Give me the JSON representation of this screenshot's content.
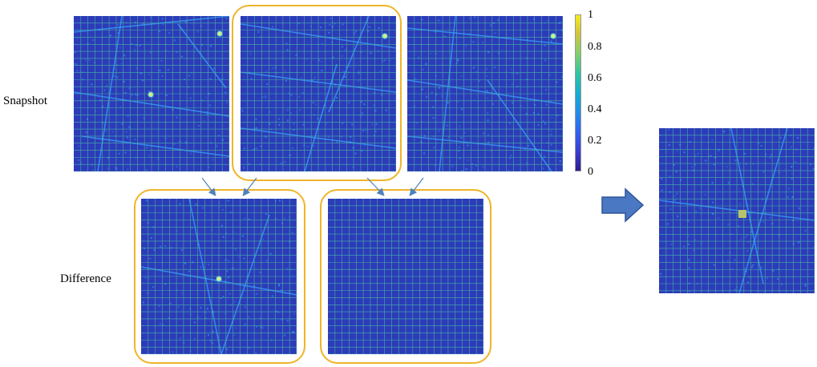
{
  "labels": {
    "snapshot": "Snapshot",
    "difference": "Difference"
  },
  "colorbar": {
    "ticks": [
      "1",
      "0.8",
      "0.6",
      "0.4",
      "0.2",
      "0"
    ]
  },
  "colors": {
    "background": "#2c3bb8",
    "grid": "#47b3a6",
    "streak": "#38a6ff",
    "hot": "#f2f26a",
    "frame": "#f0b429",
    "arrow": "#4f81bd"
  },
  "panels": [
    {
      "role": "snapshot-1",
      "streaks": true,
      "hotspots": 2
    },
    {
      "role": "snapshot-2",
      "streaks": true,
      "hotspots": 1
    },
    {
      "role": "snapshot-3",
      "streaks": true,
      "hotspots": 1
    },
    {
      "role": "difference-1",
      "streaks": true,
      "hotspots": 1
    },
    {
      "role": "difference-2",
      "streaks": false,
      "hotspots": 0
    },
    {
      "role": "result",
      "streaks": true,
      "hotspots": 1
    }
  ]
}
